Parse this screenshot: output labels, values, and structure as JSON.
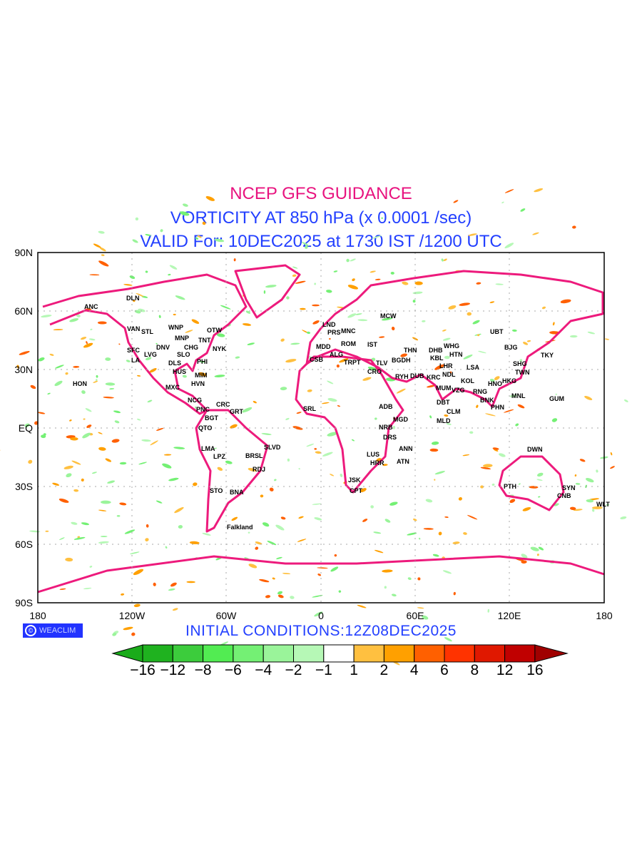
{
  "titles": {
    "line1": "NCEP GFS GUIDANCE",
    "line2": "VORTICITY AT 850 hPa (x 0.0001 /sec)",
    "line3": "VALID For: 10DEC2025 at 1730 IST /1200 UTC"
  },
  "axes": {
    "lat_labels": [
      "90N",
      "60N",
      "30N",
      "EQ",
      "30S",
      "60S",
      "90S"
    ],
    "lon_labels": [
      "180",
      "120W",
      "60W",
      "0",
      "60E",
      "120E",
      "180"
    ]
  },
  "initial_conditions": "INITIAL  CONDITIONS:12Z08DEC2025",
  "logo": {
    "text": "WEACLIM",
    "symbol": "©"
  },
  "colorbar": {
    "labels": [
      "−16",
      "−12",
      "−8",
      "−6",
      "−4",
      "−2",
      "−1",
      "1",
      "2",
      "4",
      "6",
      "8",
      "12",
      "16"
    ],
    "colors": [
      "#1aab1a",
      "#1fb21f",
      "#3ccc3c",
      "#52ec52",
      "#74f074",
      "#9af49a",
      "#b6f8b6",
      "#ffffff",
      "#ffc040",
      "#ffa000",
      "#ff6000",
      "#ff3300",
      "#e01800",
      "#c00000",
      "#a00000"
    ]
  },
  "colors": {
    "coast": "#ed1a7c",
    "grid": "#aaaaaa"
  },
  "cities": [
    "ANC",
    "DLN",
    "VAN",
    "STL",
    "WNP",
    "MNP",
    "CHG",
    "TNT",
    "OTW",
    "NYK",
    "DNV",
    "SLO",
    "SFC",
    "LA",
    "LVG",
    "DLS",
    "HUS",
    "PHI",
    "MIM",
    "HVN",
    "HON",
    "MXC",
    "NCG",
    "CRC",
    "PNC",
    "BGT",
    "GRT",
    "QTO",
    "LMA",
    "LPZ",
    "BRSL",
    "SLVD",
    "RDJ",
    "STO",
    "BNA",
    "Falkland",
    "LND",
    "PRS",
    "MNC",
    "MCW",
    "MDD",
    "ROM",
    "IST",
    "ALG",
    "CSB",
    "TRPT",
    "THN",
    "BGDH",
    "TLV",
    "CRO",
    "RYH",
    "DUB",
    "KRC",
    "DHB",
    "WHG",
    "HTN",
    "KBL",
    "LHR",
    "NDL",
    "LSA",
    "MUM",
    "VZG",
    "KOL",
    "DBT",
    "CLM",
    "MLD",
    "RNG",
    "BNK",
    "PHN",
    "HNO",
    "HKG",
    "TWN",
    "SHG",
    "BJG",
    "UBT",
    "TKY",
    "MNL",
    "GUM",
    "SRL",
    "ADB",
    "MGD",
    "NRB",
    "DRS",
    "ANN",
    "LUS",
    "HRR",
    "ATN",
    "JSK",
    "CPT",
    "DWN",
    "PTH",
    "SYN",
    "CNB",
    "WLT"
  ]
}
